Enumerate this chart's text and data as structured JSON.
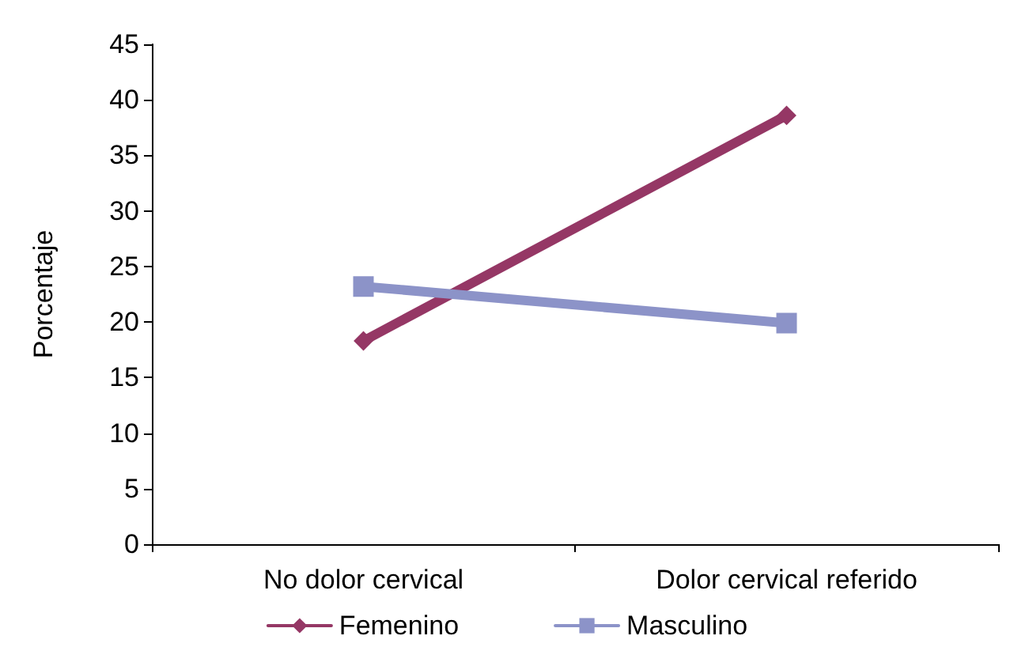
{
  "chart_data": {
    "type": "line",
    "ylabel": "Porcentaje",
    "categories": [
      "No dolor cervical",
      "Dolor cervical referido"
    ],
    "ylim": [
      0,
      45
    ],
    "yticks": [
      0,
      5,
      10,
      15,
      20,
      25,
      30,
      35,
      40,
      45
    ],
    "grid": false,
    "legend": "bottom",
    "series": [
      {
        "name": "Femenino",
        "color": "#953765",
        "marker": "diamond",
        "values": [
          18.3,
          38.6
        ]
      },
      {
        "name": "Masculino",
        "color": "#8c93c8",
        "marker": "square",
        "values": [
          23.2,
          19.9
        ]
      }
    ]
  }
}
